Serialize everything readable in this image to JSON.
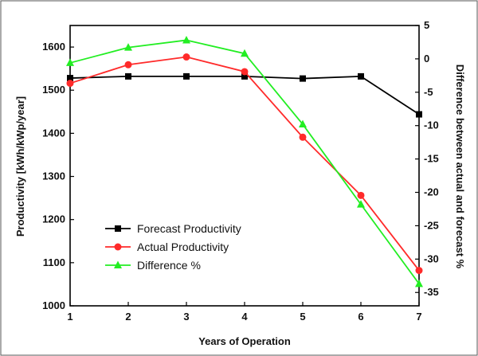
{
  "chart_data": {
    "type": "line",
    "xlabel": "Years of Operation",
    "ylabel": "Productivity [kWh/kWp/year]",
    "y2label": "Difference between actual and forecast %",
    "x": [
      1,
      2,
      3,
      4,
      5,
      6,
      7
    ],
    "xlim": [
      1,
      7
    ],
    "ylim": [
      1000,
      1650
    ],
    "y2lim": [
      -37,
      5
    ],
    "yticks": [
      1000,
      1100,
      1200,
      1300,
      1400,
      1500,
      1600
    ],
    "y2ticks": [
      5,
      0,
      -5,
      -10,
      -15,
      -20,
      -25,
      -30,
      -35
    ],
    "grid": false,
    "legend": "bottom-left",
    "series": [
      {
        "name": "Forecast Productivity",
        "axis": "left",
        "color": "#000000",
        "marker": "square",
        "values": [
          1528,
          1532,
          1532,
          1532,
          1527,
          1532,
          1444
        ]
      },
      {
        "name": "Actual Productivity",
        "axis": "left",
        "color": "#ff2a2a",
        "marker": "circle",
        "values": [
          1516,
          1559,
          1577,
          1543,
          1391,
          1256,
          1082
        ]
      },
      {
        "name": "Difference %",
        "axis": "right",
        "color": "#22ee22",
        "marker": "triangle",
        "values": [
          -0.6,
          1.7,
          2.8,
          0.8,
          -9.8,
          -21.8,
          -33.7
        ]
      }
    ]
  }
}
